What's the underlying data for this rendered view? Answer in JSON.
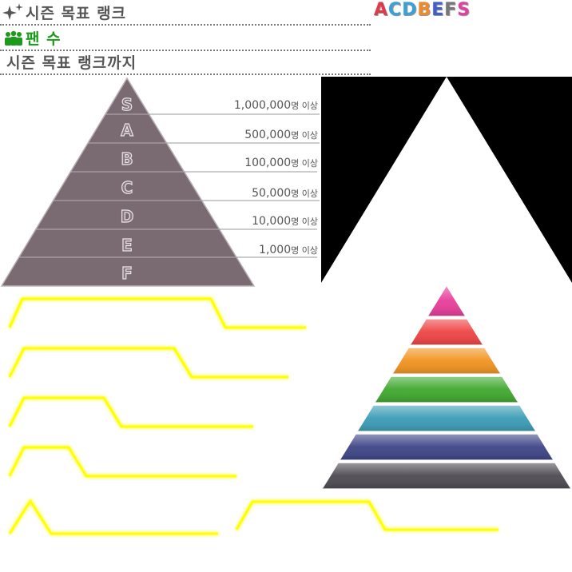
{
  "header": {
    "title": "시즌 목표 랭크",
    "fans_label": "팬 수",
    "subtitle": "시즌 목표 랭크까지"
  },
  "rank_strip": [
    {
      "letter": "A",
      "color": "#e03a4a"
    },
    {
      "letter": "C",
      "color": "#3aa0d8"
    },
    {
      "letter": "D",
      "color": "#3aa0d8"
    },
    {
      "letter": "B",
      "color": "#f08a28"
    },
    {
      "letter": "E",
      "color": "#4060c8"
    },
    {
      "letter": "F",
      "color": "#777777"
    },
    {
      "letter": "S",
      "color": "#e040a0"
    }
  ],
  "pyramid": {
    "ranks": [
      "S",
      "A",
      "B",
      "C",
      "D",
      "E",
      "F"
    ],
    "thresholds": [
      {
        "value": "1,000,000",
        "suffix": "명 이상"
      },
      {
        "value": "500,000",
        "suffix": "명 이상"
      },
      {
        "value": "100,000",
        "suffix": "명 이상"
      },
      {
        "value": "50,000",
        "suffix": "명 이상"
      },
      {
        "value": "10,000",
        "suffix": "명 이상"
      },
      {
        "value": "1,000",
        "suffix": "명 이상"
      }
    ]
  },
  "colors": {
    "pyramid_fill": "#7a6a72",
    "highlight": "#ffff00",
    "tiers": [
      "#e83d9a",
      "#ef4343",
      "#f1931f",
      "#3fa82e",
      "#3a9cb5",
      "#3d4486",
      "#4d4a52"
    ]
  }
}
